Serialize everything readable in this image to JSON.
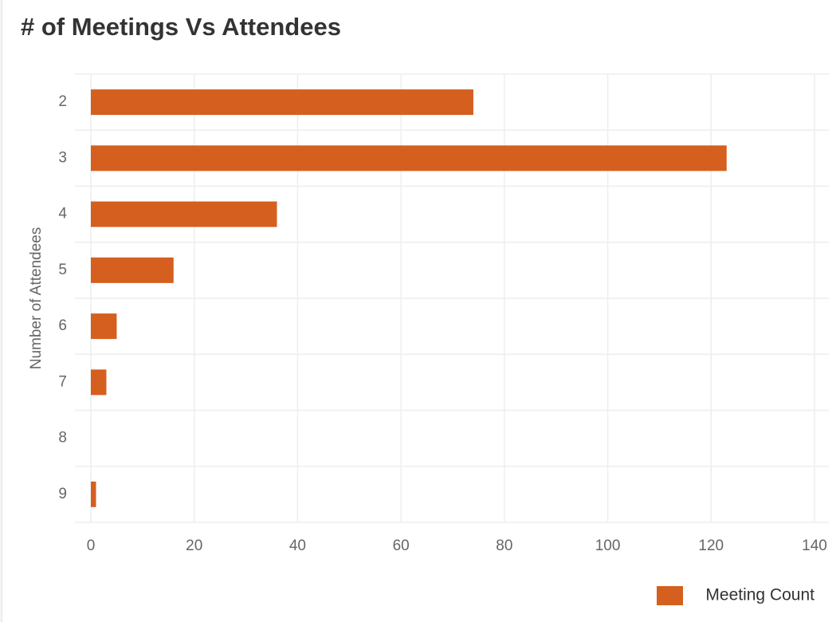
{
  "chart_data": {
    "type": "hbar",
    "title": "# of Meetings Vs Attendees",
    "y_label": "Number of Attendees",
    "categories": [
      "2",
      "3",
      "4",
      "5",
      "6",
      "7",
      "8",
      "9"
    ],
    "series": [
      {
        "name": "Meeting Count",
        "color": "#d55f1e",
        "values": [
          74,
          123,
          36,
          16,
          5,
          3,
          0,
          1
        ]
      }
    ],
    "xlim": [
      0,
      140
    ],
    "xticks": [
      0,
      20,
      40,
      60,
      80,
      100,
      120,
      140
    ],
    "grid": true,
    "legend": "bottom-right"
  }
}
